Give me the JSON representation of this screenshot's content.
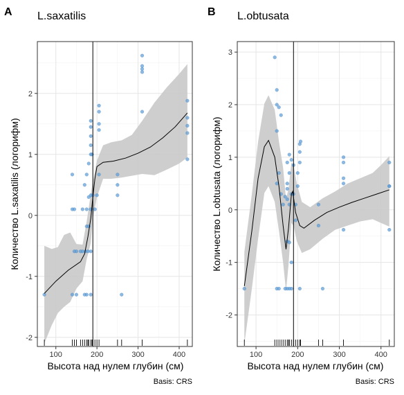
{
  "caption": "Basis: CRS",
  "colors": {
    "point": "#5b9bd5",
    "ribbon": "#c9c9c9",
    "line": "#000000",
    "grid": "#e5e5e5",
    "border": "#333333"
  },
  "chart_data": [
    {
      "type": "scatter",
      "panel": "A",
      "title": "L.saxatilis",
      "xlabel": "Высота над нулем глубин (см)",
      "ylabel": "Количество L.saxatilis (логорифм)",
      "xlim": [
        55,
        432
      ],
      "ylim": [
        -2.15,
        2.85
      ],
      "xticks": [
        100,
        200,
        300,
        400
      ],
      "yticks": [
        -2,
        -1,
        0,
        1,
        2
      ],
      "grid": true,
      "vline": 190,
      "points": [
        [
          72,
          -1.3
        ],
        [
          140,
          -1.3
        ],
        [
          150,
          -1.3
        ],
        [
          170,
          -1.3
        ],
        [
          175,
          -1.3
        ],
        [
          185,
          -1.3
        ],
        [
          260,
          -1.3
        ],
        [
          140,
          0.1
        ],
        [
          145,
          0.1
        ],
        [
          140,
          0.67
        ],
        [
          145,
          -0.59
        ],
        [
          150,
          -0.59
        ],
        [
          160,
          -0.59
        ],
        [
          165,
          -0.59
        ],
        [
          172,
          -0.59
        ],
        [
          178,
          -0.59
        ],
        [
          185,
          -0.59
        ],
        [
          165,
          0.1
        ],
        [
          175,
          0.1
        ],
        [
          185,
          0.1
        ],
        [
          175,
          -0.18
        ],
        [
          180,
          -0.18
        ],
        [
          180,
          0.3
        ],
        [
          185,
          0.33
        ],
        [
          190,
          0.33
        ],
        [
          170,
          0.5
        ],
        [
          175,
          0.67
        ],
        [
          180,
          0.85
        ],
        [
          185,
          1.0
        ],
        [
          188,
          1.0
        ],
        [
          185,
          1.15
        ],
        [
          185,
          1.3
        ],
        [
          185,
          1.45
        ],
        [
          185,
          1.55
        ],
        [
          195,
          0.1
        ],
        [
          200,
          0.33
        ],
        [
          205,
          0.67
        ],
        [
          205,
          1.4
        ],
        [
          205,
          1.5
        ],
        [
          205,
          1.7
        ],
        [
          205,
          1.8
        ],
        [
          250,
          0.33
        ],
        [
          250,
          0.5
        ],
        [
          250,
          0.67
        ],
        [
          310,
          1.7
        ],
        [
          310,
          2.35
        ],
        [
          310,
          2.4
        ],
        [
          310,
          2.45
        ],
        [
          310,
          2.62
        ],
        [
          420,
          0.92
        ],
        [
          420,
          1.35
        ],
        [
          420,
          1.47
        ],
        [
          420,
          1.6
        ],
        [
          420,
          1.88
        ]
      ],
      "smooth": [
        [
          72,
          -1.28
        ],
        [
          100,
          -1.08
        ],
        [
          130,
          -0.9
        ],
        [
          160,
          -0.76
        ],
        [
          170,
          -0.63
        ],
        [
          178,
          -0.35
        ],
        [
          185,
          -0.05
        ],
        [
          190,
          0.3
        ],
        [
          195,
          0.6
        ],
        [
          200,
          0.8
        ],
        [
          215,
          0.87
        ],
        [
          240,
          0.89
        ],
        [
          270,
          0.94
        ],
        [
          300,
          1.02
        ],
        [
          330,
          1.12
        ],
        [
          360,
          1.27
        ],
        [
          390,
          1.45
        ],
        [
          420,
          1.68
        ]
      ],
      "ribbon_upper": [
        [
          72,
          -0.5
        ],
        [
          90,
          -0.55
        ],
        [
          105,
          -0.52
        ],
        [
          120,
          -0.32
        ],
        [
          135,
          -0.28
        ],
        [
          150,
          -0.47
        ],
        [
          165,
          -0.48
        ],
        [
          175,
          -0.1
        ],
        [
          185,
          0.35
        ],
        [
          190,
          0.55
        ],
        [
          200,
          0.9
        ],
        [
          215,
          1.15
        ],
        [
          235,
          1.2
        ],
        [
          260,
          1.23
        ],
        [
          285,
          1.32
        ],
        [
          310,
          1.55
        ],
        [
          340,
          1.85
        ],
        [
          370,
          2.1
        ],
        [
          400,
          2.32
        ],
        [
          420,
          2.48
        ]
      ],
      "ribbon_lower": [
        [
          72,
          -2.1
        ],
        [
          90,
          -1.8
        ],
        [
          105,
          -1.6
        ],
        [
          120,
          -1.5
        ],
        [
          135,
          -1.42
        ],
        [
          150,
          -1.2
        ],
        [
          165,
          -1.08
        ],
        [
          175,
          -0.72
        ],
        [
          185,
          -0.45
        ],
        [
          190,
          -0.05
        ],
        [
          200,
          0.3
        ],
        [
          215,
          0.6
        ],
        [
          235,
          0.6
        ],
        [
          260,
          0.62
        ],
        [
          285,
          0.65
        ],
        [
          310,
          0.68
        ],
        [
          340,
          0.66
        ],
        [
          370,
          0.75
        ],
        [
          400,
          0.85
        ],
        [
          420,
          0.95
        ]
      ],
      "rug": [
        72,
        140,
        145,
        150,
        160,
        165,
        170,
        175,
        178,
        180,
        185,
        188,
        190,
        195,
        200,
        205,
        250,
        260,
        310,
        420
      ]
    },
    {
      "type": "scatter",
      "panel": "B",
      "title": "L.obtusata",
      "xlabel": "Высота над нулем глубин (см)",
      "ylabel": "Количество L.obtusata (логорифм)",
      "xlim": [
        55,
        432
      ],
      "ylim": [
        -2.6,
        3.2
      ],
      "xticks": [
        100,
        200,
        300,
        400
      ],
      "yticks": [
        -2,
        -1,
        0,
        1,
        2,
        3
      ],
      "grid": true,
      "vline": 190,
      "points": [
        [
          72,
          -1.5
        ],
        [
          150,
          -1.5
        ],
        [
          155,
          -1.5
        ],
        [
          170,
          -1.5
        ],
        [
          175,
          -1.5
        ],
        [
          180,
          -1.5
        ],
        [
          185,
          -1.5
        ],
        [
          205,
          -1.5
        ],
        [
          260,
          -1.5
        ],
        [
          145,
          2.9
        ],
        [
          150,
          2.28
        ],
        [
          150,
          2.0
        ],
        [
          155,
          1.95
        ],
        [
          160,
          1.8
        ],
        [
          150,
          1.5
        ],
        [
          155,
          0.7
        ],
        [
          150,
          0.5
        ],
        [
          160,
          0.3
        ],
        [
          165,
          0.1
        ],
        [
          170,
          0.25
        ],
        [
          175,
          0.4
        ],
        [
          175,
          0.5
        ],
        [
          180,
          0.7
        ],
        [
          175,
          0.9
        ],
        [
          180,
          1.05
        ],
        [
          185,
          0.95
        ],
        [
          190,
          0.85
        ],
        [
          175,
          0.2
        ],
        [
          180,
          0.1
        ],
        [
          185,
          0.3
        ],
        [
          190,
          0.3
        ],
        [
          195,
          0.1
        ],
        [
          200,
          0.45
        ],
        [
          200,
          0.7
        ],
        [
          205,
          0.9
        ],
        [
          205,
          1.1
        ],
        [
          205,
          1.25
        ],
        [
          207,
          1.3
        ],
        [
          175,
          -0.6
        ],
        [
          180,
          -0.62
        ],
        [
          185,
          -1.0
        ],
        [
          195,
          -0.2
        ],
        [
          250,
          0.1
        ],
        [
          250,
          -0.3
        ],
        [
          310,
          0.5
        ],
        [
          310,
          0.6
        ],
        [
          310,
          0.9
        ],
        [
          310,
          1.0
        ],
        [
          310,
          -0.38
        ],
        [
          420,
          0.45
        ],
        [
          420,
          0.9
        ],
        [
          420,
          -0.38
        ],
        [
          420,
          0.45
        ]
      ],
      "smooth": [
        [
          72,
          -1.45
        ],
        [
          90,
          -0.4
        ],
        [
          105,
          0.6
        ],
        [
          120,
          1.2
        ],
        [
          130,
          1.32
        ],
        [
          145,
          1.0
        ],
        [
          155,
          0.45
        ],
        [
          165,
          -0.3
        ],
        [
          172,
          -0.75
        ],
        [
          178,
          -0.35
        ],
        [
          185,
          0.3
        ],
        [
          188,
          0.35
        ],
        [
          195,
          -0.05
        ],
        [
          205,
          -0.3
        ],
        [
          215,
          -0.35
        ],
        [
          240,
          -0.2
        ],
        [
          270,
          -0.05
        ],
        [
          300,
          0.05
        ],
        [
          330,
          0.14
        ],
        [
          360,
          0.22
        ],
        [
          390,
          0.3
        ],
        [
          420,
          0.38
        ]
      ],
      "ribbon_upper": [
        [
          72,
          -0.8
        ],
        [
          90,
          0.3
        ],
        [
          105,
          1.3
        ],
        [
          120,
          2.02
        ],
        [
          130,
          2.18
        ],
        [
          145,
          1.9
        ],
        [
          155,
          1.3
        ],
        [
          165,
          0.8
        ],
        [
          172,
          0.2
        ],
        [
          178,
          0.4
        ],
        [
          185,
          0.9
        ],
        [
          190,
          0.85
        ],
        [
          198,
          0.5
        ],
        [
          210,
          0.15
        ],
        [
          230,
          0.05
        ],
        [
          260,
          0.22
        ],
        [
          290,
          0.35
        ],
        [
          320,
          0.5
        ],
        [
          350,
          0.6
        ],
        [
          380,
          0.7
        ],
        [
          400,
          0.85
        ],
        [
          420,
          1.02
        ]
      ],
      "ribbon_lower": [
        [
          72,
          -2.55
        ],
        [
          90,
          -1.5
        ],
        [
          105,
          -0.55
        ],
        [
          120,
          0.32
        ],
        [
          130,
          0.45
        ],
        [
          145,
          0.15
        ],
        [
          155,
          -0.4
        ],
        [
          165,
          -1.0
        ],
        [
          172,
          -1.55
        ],
        [
          178,
          -1.05
        ],
        [
          185,
          -0.25
        ],
        [
          190,
          -0.3
        ],
        [
          198,
          -0.6
        ],
        [
          210,
          -0.82
        ],
        [
          230,
          -0.75
        ],
        [
          260,
          -0.55
        ],
        [
          290,
          -0.38
        ],
        [
          320,
          -0.3
        ],
        [
          350,
          -0.22
        ],
        [
          380,
          -0.18
        ],
        [
          400,
          -0.25
        ],
        [
          420,
          -0.32
        ]
      ],
      "rug": [
        72,
        145,
        150,
        155,
        160,
        165,
        170,
        175,
        178,
        180,
        185,
        190,
        195,
        200,
        205,
        207,
        250,
        260,
        310,
        420
      ]
    }
  ]
}
